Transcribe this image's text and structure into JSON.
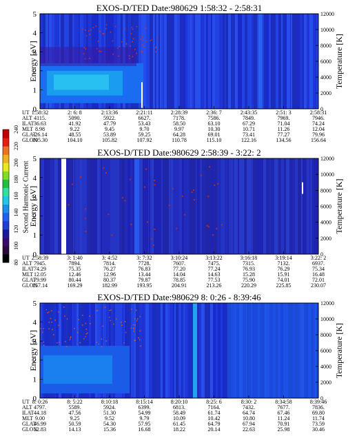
{
  "colorbar": {
    "label": "Second Harmonic Current",
    "ticks": [
      "80",
      "100",
      "120",
      "140",
      "160",
      "180",
      "200",
      "220",
      "240"
    ],
    "colors": [
      "#000000",
      "#2a0a3a",
      "#3a0a6a",
      "#1a1aa0",
      "#1e3fd6",
      "#2060f0",
      "#1a8ff0",
      "#20c8e8",
      "#30e0a0",
      "#20c040",
      "#80e020",
      "#e8e820",
      "#f0b020",
      "#f07020",
      "#e02010",
      "#c00000"
    ]
  },
  "chart_data": [
    {
      "type": "heatmap",
      "title": "EXOS-D/TED   Date:980629   1:58:32 - 2:58:31",
      "ylabel": "Energy [eV]",
      "ylim": [
        0,
        5
      ],
      "yticks": [
        "0",
        "1",
        "2",
        "3",
        "4",
        "5"
      ],
      "y2label": "Temperature [K]",
      "y2lim": [
        0,
        12000
      ],
      "y2ticks": [
        "0",
        "2000",
        "4000",
        "6000",
        "8000",
        "10000",
        "12000"
      ],
      "row_labels": [
        "UT",
        "ALT",
        "ILAT",
        "MLT",
        "GLAT",
        "GLON"
      ],
      "columns": [
        [
          "1:58:32",
          "4115.",
          "36.63",
          "8.98",
          "-26.14",
          "105.30"
        ],
        [
          "2: 6: 8",
          "5090.",
          "41.92",
          "9.22",
          "48.55",
          "104.10"
        ],
        [
          "2:13:36",
          "5922.",
          "47.79",
          "9.45",
          "53.89",
          "105.82"
        ],
        [
          "2:21:11",
          "6627.",
          "53.43",
          "9.70",
          "59.25",
          "107.92"
        ],
        [
          "2:28:39",
          "7178.",
          "58.50",
          "9.97",
          "64.28",
          "110.78"
        ],
        [
          "2:36: 7",
          "7586.",
          "63.10",
          "10.30",
          "69.01",
          "115.10"
        ],
        [
          "2:43:35",
          "7849.",
          "67.29",
          "10.71",
          "73.41",
          "122.16"
        ],
        [
          "2:51: 3",
          "7969.",
          "71.04",
          "11.26",
          "77.27",
          "134.56"
        ],
        [
          "2:58:31",
          "7946.",
          "74.24",
          "12.04",
          "79.96",
          "156.64"
        ]
      ]
    },
    {
      "type": "heatmap",
      "title": "EXOS-D/TED   Date:980629   2:58:39 - 3:22: 2",
      "ylabel": "Energy [eV]",
      "ylim": [
        0,
        5
      ],
      "yticks": [
        "0",
        "1",
        "2",
        "3",
        "4",
        "5"
      ],
      "y2label": "Temperature [K]",
      "y2lim": [
        0,
        12000
      ],
      "y2ticks": [
        "0",
        "2000",
        "4000",
        "6000",
        "8000",
        "10000",
        "12000"
      ],
      "row_labels": [
        "UT",
        "ALT",
        "ILAT",
        "MLT",
        "GLAT",
        "GLON"
      ],
      "columns": [
        [
          "2:58:39",
          "7945.",
          "74.29",
          "12.05",
          "79.99",
          "157.14"
        ],
        [
          "3: 1:40",
          "7894.",
          "75.35",
          "12.46",
          "80.44",
          "169.29"
        ],
        [
          "3: 4:52",
          "7814.",
          "76.27",
          "12.96",
          "80.37",
          "182.99"
        ],
        [
          "3: 7:32",
          "7728.",
          "76.83",
          "13.44",
          "79.87",
          "193.95"
        ],
        [
          "3:10:24",
          "7607.",
          "77.20",
          "14.04",
          "78.85",
          "204.91"
        ],
        [
          "3:13:22",
          "7475.",
          "77.24",
          "14.63",
          "77.53",
          "213.26"
        ],
        [
          "3:16:18",
          "7315.",
          "76.93",
          "15.28",
          "75.90",
          "220.29"
        ],
        [
          "3:19:14",
          "7132.",
          "76.29",
          "15.91",
          "74.01",
          "225.85"
        ],
        [
          "3:22: 2",
          "6937.",
          "75.34",
          "16.48",
          "72.01",
          "230.07"
        ]
      ]
    },
    {
      "type": "heatmap",
      "title": "EXOS-D/TED   Date:980629   8: 0:26 - 8:39:46",
      "ylabel": "Energy [eV]",
      "ylim": [
        0,
        5
      ],
      "yticks": [
        "0",
        "1",
        "2",
        "3",
        "4",
        "5"
      ],
      "y2label": "Temperature [K]",
      "y2lim": [
        0,
        12000
      ],
      "y2ticks": [
        "0",
        "2000",
        "4000",
        "6000",
        "8000",
        "10000",
        "12000"
      ],
      "row_labels": [
        "UT",
        "ALT",
        "ILAT",
        "MLT",
        "GLAT",
        "GLON"
      ],
      "columns": [
        [
          "8: 0:26",
          "4797.",
          "44.18",
          "9.00",
          "46.99",
          "12.83"
        ],
        [
          "8: 5:22",
          "5589.",
          "47.56",
          "9.25",
          "50.59",
          "14.13"
        ],
        [
          "8:10:18",
          "5924.",
          "51.30",
          "9.52",
          "54.30",
          "15.36"
        ],
        [
          "8:15:14",
          "6399.",
          "54.99",
          "9.79",
          "57.95",
          "16.68"
        ],
        [
          "8:20:10",
          "6813.",
          "58.49",
          "10.09",
          "61.45",
          "18.22"
        ],
        [
          "8:25: 6",
          "7164.",
          "61.74",
          "10.42",
          "64.79",
          "20.14"
        ],
        [
          "8:30: 2",
          "7432.",
          "64.74",
          "10.80",
          "67.94",
          "22.63"
        ],
        [
          "8:34:58",
          "7677.",
          "67.46",
          "11.24",
          "70.91",
          "25.98"
        ],
        [
          "8:39:46",
          "7836.",
          "69.80",
          "11.74",
          "73.59",
          "30.46"
        ]
      ]
    }
  ]
}
